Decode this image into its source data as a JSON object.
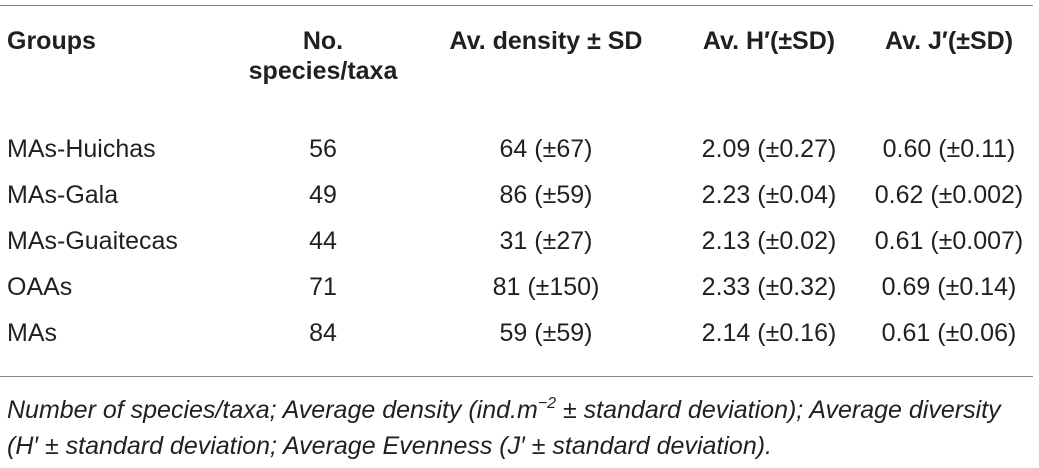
{
  "table": {
    "headers": {
      "group": "Groups",
      "species_line1": "No.",
      "species_line2": "species/taxa",
      "density": "Av. density ± SD",
      "h": "Av. H′(±SD)",
      "j": "Av. J′(±SD)"
    },
    "rows": [
      {
        "group": "MAs-Huichas",
        "species": "56",
        "density": "64 (±67)",
        "h": "2.09 (±0.27)",
        "j": "0.60 (±0.11)"
      },
      {
        "group": "MAs-Gala",
        "species": "49",
        "density": "86 (±59)",
        "h": "2.23 (±0.04)",
        "j": "0.62 (±0.002)"
      },
      {
        "group": "MAs-Guaitecas",
        "species": "44",
        "density": "31 (±27)",
        "h": "2.13 (±0.02)",
        "j": "0.61 (±0.007)"
      },
      {
        "group": "OAAs",
        "species": "71",
        "density": "81 (±150)",
        "h": "2.33 (±0.32)",
        "j": "0.69 (±0.14)"
      },
      {
        "group": "MAs",
        "species": "84",
        "density": "59 (±59)",
        "h": "2.14 (±0.16)",
        "j": "0.61 (±0.06)"
      }
    ]
  },
  "footnote": {
    "part1": "Number of species/taxa; Average density (ind.m",
    "sup": "−2",
    "part2": " ± standard deviation); Average diversity (H′ ± standard deviation; Average Evenness (J′ ± standard deviation)."
  }
}
